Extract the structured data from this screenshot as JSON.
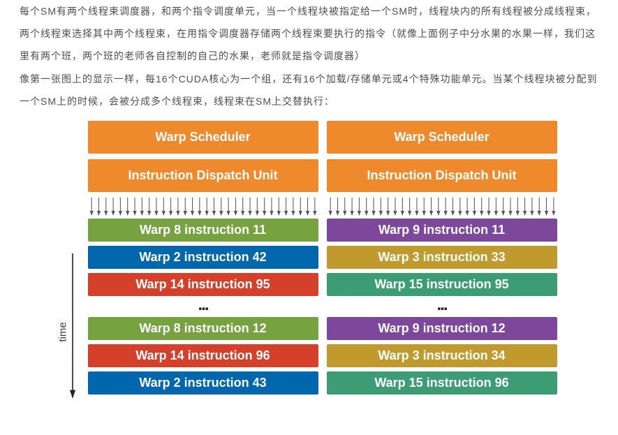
{
  "prose": {
    "p1": "每个SM有两个线程束调度器，和两个指令调度单元，当一个线程块被指定给一个SM时，线程块内的所有线程被分成线程束，两个线程束选择其中两个线程束，在用指令调度器存储两个线程束要执行的指令（就像上面例子中分水果的水果一样，我们这里有两个班，两个班的老师各自控制的自己的水果，老师就是指令调度器）",
    "p2": "像第一张图上的显示一样，每16个CUDA核心为一个组，还有16个加载/存储单元或4个特殊功能单元。当某个线程块被分配到一个SM上的时候，会被分成多个线程束，线程束在SM上交替执行："
  },
  "diagram": {
    "time_label": "time",
    "colors": {
      "header_orange": "#ee8a2b",
      "green": "#76a240",
      "blue": "#0067ac",
      "red": "#d5402b",
      "purple": "#7d489c",
      "ochre": "#c19a2e",
      "teal": "#3c9d75",
      "arrow": "#555555",
      "time_line": "#222222"
    },
    "header": {
      "left_sched": "Warp Scheduler",
      "right_sched": "Warp Scheduler",
      "left_disp": "Instruction Dispatch Unit",
      "right_disp": "Instruction Dispatch Unit"
    },
    "arrow_count_per_side": 32,
    "rows_top": [
      {
        "left": {
          "text": "Warp 8 instruction 11",
          "color": "green"
        },
        "right": {
          "text": "Warp 9 instruction 11",
          "color": "purple"
        }
      },
      {
        "left": {
          "text": "Warp 2 instruction 42",
          "color": "blue"
        },
        "right": {
          "text": "Warp 3 instruction 33",
          "color": "ochre"
        }
      },
      {
        "left": {
          "text": "Warp 14 instruction 95",
          "color": "red"
        },
        "right": {
          "text": "Warp 15 instruction 95",
          "color": "teal"
        }
      }
    ],
    "rows_bottom": [
      {
        "left": {
          "text": "Warp 8 instruction 12",
          "color": "green"
        },
        "right": {
          "text": "Warp 9 instruction 12",
          "color": "purple"
        }
      },
      {
        "left": {
          "text": "Warp 14 instruction 96",
          "color": "red"
        },
        "right": {
          "text": "Warp 3 instruction 34",
          "color": "ochre"
        }
      },
      {
        "left": {
          "text": "Warp 2 instruction 43",
          "color": "blue"
        },
        "right": {
          "text": "Warp 15 instruction 96",
          "color": "teal"
        }
      }
    ],
    "dots": "..."
  }
}
